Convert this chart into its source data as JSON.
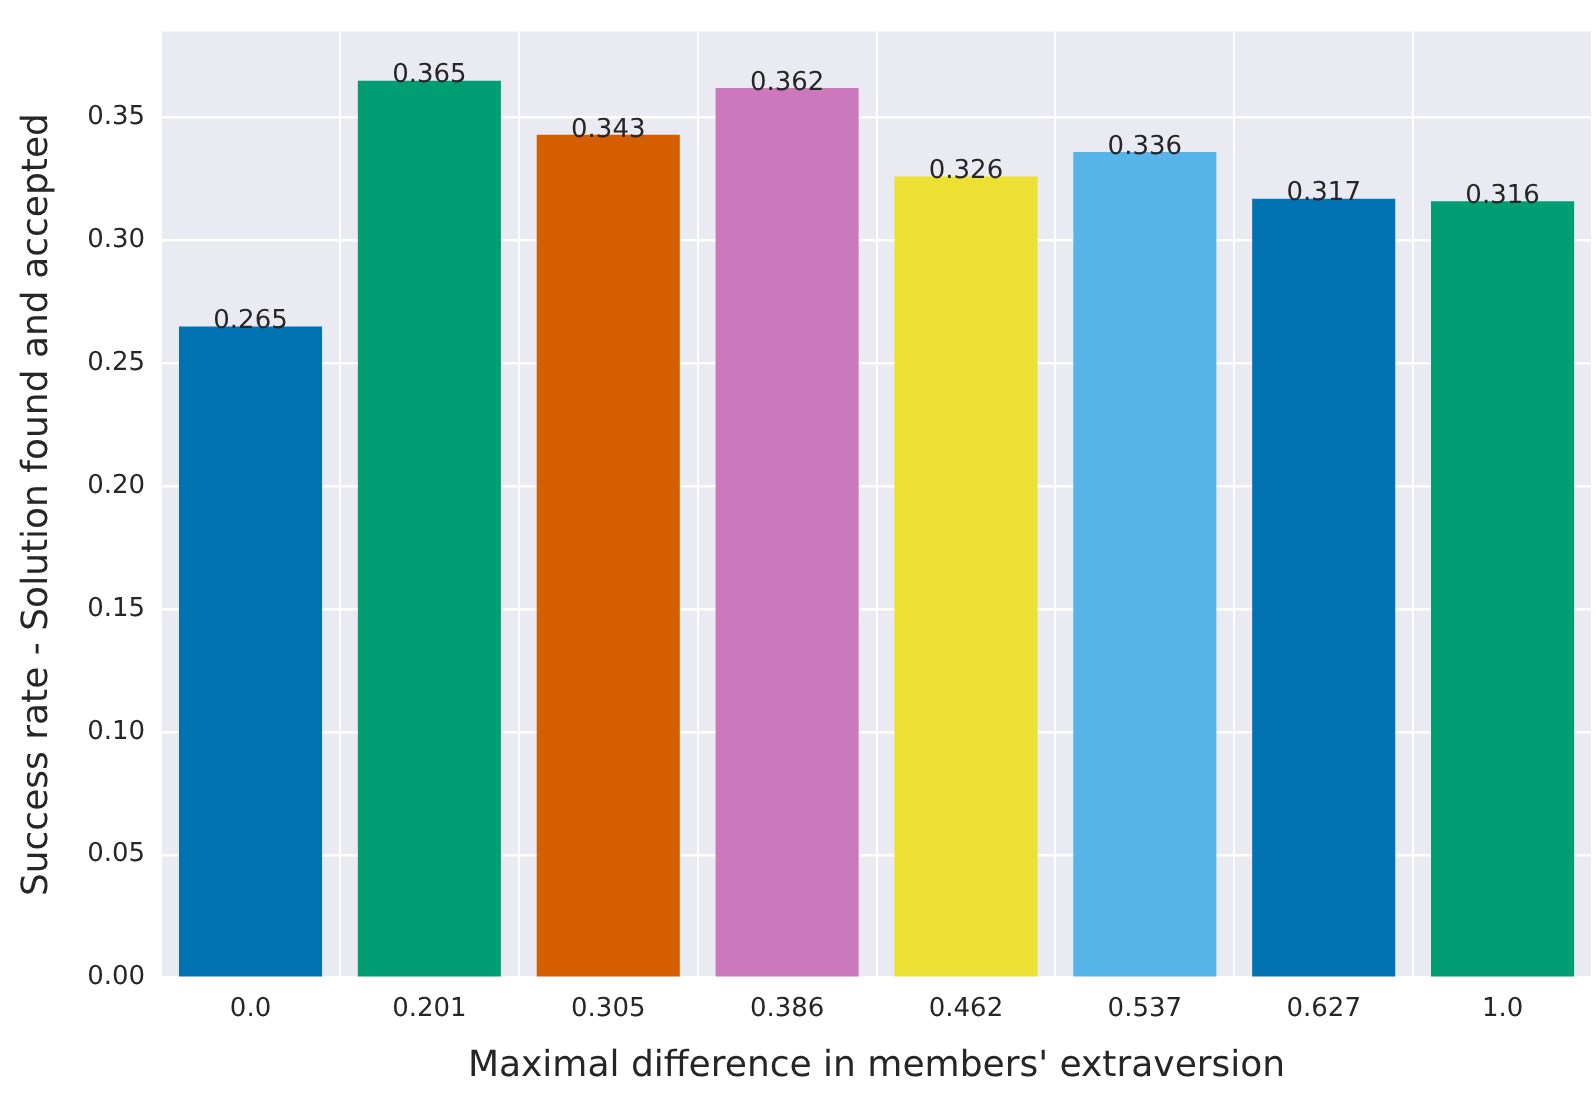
{
  "chart_data": {
    "type": "bar",
    "xlabel": "Maximal difference in members' extraversion",
    "ylabel": "Success rate - Solution found and accepted",
    "categories": [
      "0.0",
      "0.201",
      "0.305",
      "0.386",
      "0.462",
      "0.537",
      "0.627",
      "1.0"
    ],
    "values": [
      0.265,
      0.365,
      0.343,
      0.362,
      0.326,
      0.336,
      0.317,
      0.316
    ],
    "colors": [
      "#0173b2",
      "#029e73",
      "#d55e00",
      "#cc78bc",
      "#ece133",
      "#56b4e9",
      "#0173b2",
      "#029e73"
    ],
    "ylim": [
      0,
      0.385
    ],
    "yticks": [
      {
        "value": 0,
        "label": "0.00"
      },
      {
        "value": 0.05,
        "label": "0.05"
      },
      {
        "value": 0.1,
        "label": "0.10"
      },
      {
        "value": 0.15,
        "label": "0.15"
      },
      {
        "value": 0.2,
        "label": "0.20"
      },
      {
        "value": 0.25,
        "label": "0.25"
      },
      {
        "value": 0.3,
        "label": "0.30"
      },
      {
        "value": 0.35,
        "label": "0.35"
      }
    ],
    "grid": true,
    "data_labels": true
  }
}
